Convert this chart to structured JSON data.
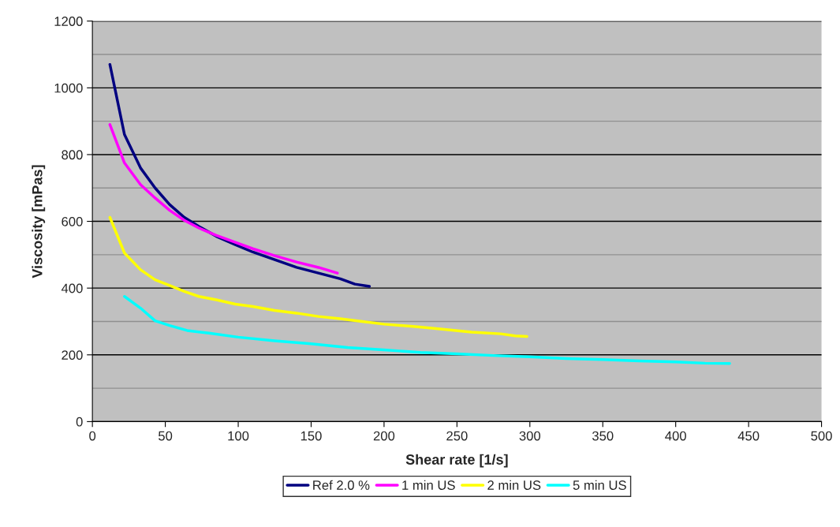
{
  "chart_data": {
    "type": "line",
    "xlabel": "Shear rate [1/s]",
    "ylabel": "Viscosity [mPas]",
    "xlim": [
      0,
      500
    ],
    "xticks": [
      0,
      50,
      100,
      150,
      200,
      250,
      300,
      350,
      400,
      450,
      500
    ],
    "ylim": [
      0,
      1200
    ],
    "yticks": [
      0,
      200,
      400,
      600,
      800,
      1000,
      1200
    ],
    "grid": "y",
    "legend": "bottom",
    "marker": "none",
    "line_style": "solid",
    "series": [
      {
        "name": "Ref 2.0 %",
        "color": "#000080",
        "x": [
          12,
          22,
          33,
          43,
          53,
          63,
          73,
          85,
          98,
          110,
          125,
          140,
          155,
          170,
          180,
          190
        ],
        "values": [
          1070,
          860,
          760,
          700,
          650,
          612,
          585,
          555,
          530,
          508,
          485,
          462,
          445,
          428,
          412,
          405
        ]
      },
      {
        "name": "1 min US",
        "color": "#ff00ff",
        "x": [
          12,
          22,
          33,
          43,
          53,
          63,
          73,
          85,
          98,
          110,
          125,
          140,
          155,
          168
        ],
        "values": [
          890,
          775,
          710,
          670,
          633,
          603,
          580,
          558,
          537,
          518,
          497,
          478,
          462,
          445
        ]
      },
      {
        "name": "2 min US",
        "color": "#ffff00",
        "x": [
          12,
          22,
          33,
          43,
          53,
          63,
          73,
          85,
          98,
          110,
          125,
          140,
          155,
          170,
          185,
          200,
          220,
          240,
          260,
          280,
          290,
          298
        ],
        "values": [
          612,
          505,
          455,
          425,
          408,
          390,
          375,
          365,
          352,
          345,
          333,
          325,
          315,
          308,
          300,
          292,
          285,
          277,
          268,
          263,
          257,
          255
        ]
      },
      {
        "name": "5 min US",
        "color": "#00ffff",
        "x": [
          22,
          33,
          43,
          53,
          65,
          80,
          100,
          125,
          150,
          175,
          200,
          225,
          250,
          275,
          300,
          325,
          350,
          375,
          400,
          420,
          437
        ],
        "values": [
          375,
          340,
          302,
          288,
          273,
          265,
          253,
          242,
          233,
          222,
          215,
          207,
          203,
          198,
          194,
          189,
          186,
          182,
          179,
          175,
          174
        ]
      }
    ]
  }
}
